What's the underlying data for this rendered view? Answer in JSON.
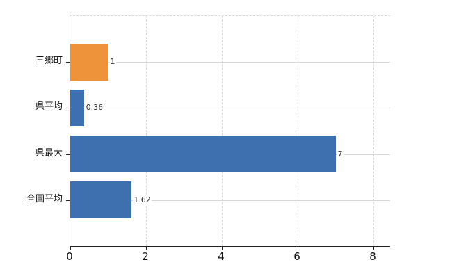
{
  "chart_data": {
    "type": "bar",
    "orientation": "horizontal",
    "categories": [
      "三郷町",
      "県平均",
      "県最大",
      "全国平均"
    ],
    "values": [
      1,
      0.36,
      7,
      1.62
    ],
    "value_labels": [
      "1",
      "0.36",
      "7",
      "1.62"
    ],
    "bar_colors": [
      "#ee9339",
      "#3e6fae",
      "#3e6fae",
      "#3e6fae"
    ],
    "xticks": [
      0,
      2,
      4,
      6,
      8
    ],
    "xtick_labels": [
      "0",
      "2",
      "4",
      "6",
      "8"
    ],
    "xlim": [
      0,
      8.44
    ],
    "grid": true,
    "gridline_color": "#d9d9d9",
    "axis_color": "#262626",
    "background_color": "#ffffff",
    "title": "",
    "xlabel": "",
    "ylabel": "",
    "legend_position": "none"
  }
}
